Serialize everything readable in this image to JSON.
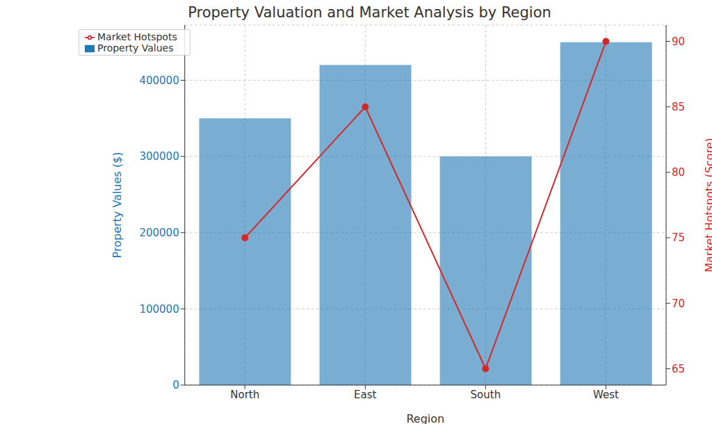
{
  "chart_data": {
    "type": "bar",
    "title": "Property Valuation and Market Analysis by Region",
    "x_label": "Region",
    "y_label": "Property Values ($)",
    "y2_label": "Market Hotspots (Score)",
    "categories": [
      "North",
      "East",
      "South",
      "West"
    ],
    "series": [
      {
        "name": "Property Values",
        "type": "bar",
        "color": "#1f77b4",
        "values": [
          350000,
          420000,
          300000,
          450000
        ]
      },
      {
        "name": "Market Hotspots",
        "type": "line",
        "color": "#d62728",
        "marker": "circle",
        "axis": "y2",
        "values": [
          75,
          85,
          65,
          90
        ]
      }
    ],
    "ylim": [
      0,
      472500
    ],
    "yticks": [
      0,
      100000,
      200000,
      300000,
      400000
    ],
    "y2lim": [
      63.75,
      91.25
    ],
    "y2ticks": [
      65,
      70,
      75,
      80,
      85,
      90
    ],
    "grid": true,
    "legend": "upper left"
  }
}
